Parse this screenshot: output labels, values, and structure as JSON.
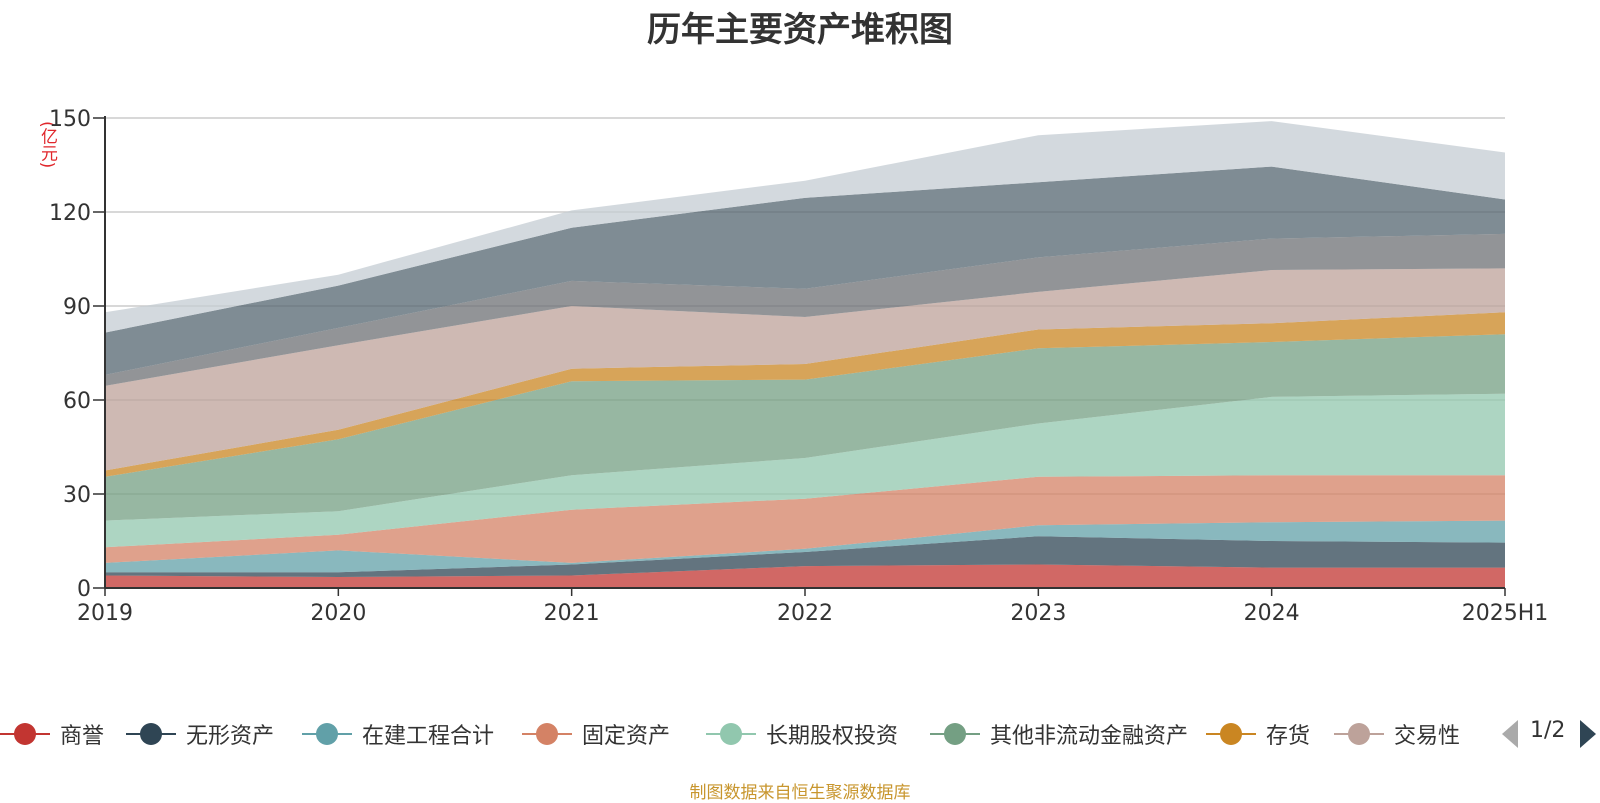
{
  "title": "历年主要资产堆积图",
  "unit_label": "(亿元)",
  "source": "制图数据来自恒生聚源数据库",
  "pager": {
    "text": "1/2"
  },
  "legend_items": [
    {
      "name": "商誉",
      "color": "#c23531"
    },
    {
      "name": "无形资产",
      "color": "#2f4554"
    },
    {
      "name": "在建工程合计",
      "color": "#61a0a8"
    },
    {
      "name": "固定资产",
      "color": "#d48265"
    },
    {
      "name": "长期股权投资",
      "color": "#91c7ae"
    },
    {
      "name": "其他非流动金融资产",
      "color": "#749f83"
    },
    {
      "name": "存货",
      "color": "#ca8622"
    },
    {
      "name": "交易性",
      "color": "#bda29a"
    }
  ],
  "chart_data": {
    "type": "area",
    "stacked": true,
    "x": [
      "2019",
      "2020",
      "2021",
      "2022",
      "2023",
      "2024",
      "2025H1"
    ],
    "ylim": [
      0,
      150
    ],
    "yticks": [
      0,
      30,
      60,
      90,
      120,
      150
    ],
    "grid": true,
    "legend_position": "bottom",
    "series": [
      {
        "name": "商誉",
        "color": "#c23531",
        "values": [
          4,
          3.5,
          4,
          7,
          7.5,
          6.5,
          6.5
        ]
      },
      {
        "name": "无形资产",
        "color": "#2f4554",
        "values": [
          1,
          1.5,
          3.5,
          4.5,
          9,
          8.5,
          8
        ]
      },
      {
        "name": "在建工程合计",
        "color": "#61a0a8",
        "values": [
          3,
          7,
          0.5,
          1,
          3.5,
          6,
          7
        ]
      },
      {
        "name": "固定资产",
        "color": "#d48265",
        "values": [
          5,
          5,
          17,
          16,
          15.5,
          15,
          14.5
        ]
      },
      {
        "name": "长期股权投资",
        "color": "#91c7ae",
        "values": [
          8.5,
          7.5,
          11,
          13,
          17,
          25,
          26
        ]
      },
      {
        "name": "其他非流动金融资产",
        "color": "#749f83",
        "values": [
          14,
          23,
          30,
          25,
          24,
          17.5,
          19
        ]
      },
      {
        "name": "存货",
        "color": "#ca8622",
        "values": [
          2,
          3,
          4,
          5,
          6,
          6,
          7
        ]
      },
      {
        "name": "交易性",
        "color": "#bda29a",
        "values": [
          27,
          27,
          20,
          15,
          12,
          17,
          14
        ]
      },
      {
        "color": "#6e7074",
        "values": [
          3.5,
          5.5,
          8,
          9,
          11,
          10,
          11
        ]
      },
      {
        "color": "#546570",
        "values": [
          13.5,
          13.5,
          17,
          29,
          24,
          23,
          11
        ]
      },
      {
        "color": "#c4ccd3",
        "values": [
          6.5,
          3.5,
          5.5,
          5.5,
          15,
          14.5,
          15
        ]
      }
    ]
  }
}
